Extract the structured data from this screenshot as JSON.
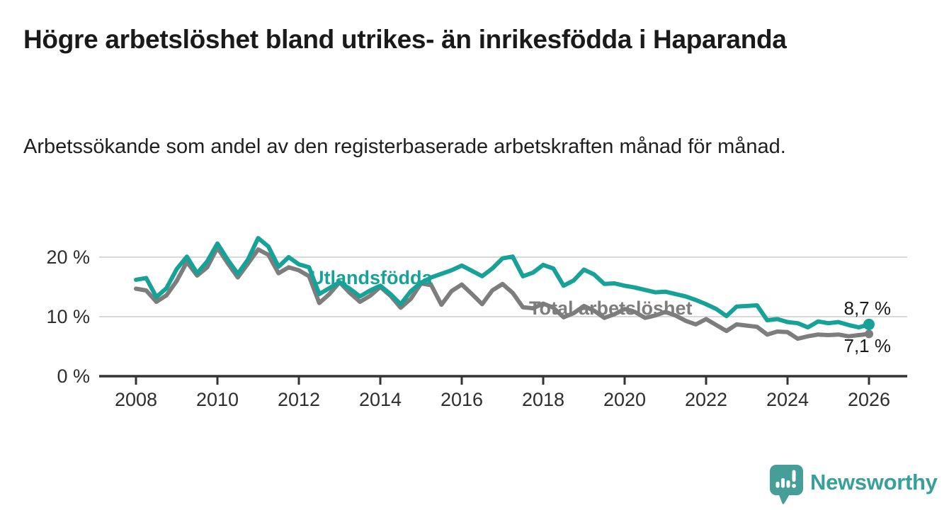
{
  "chart_data": {
    "type": "line",
    "title": "Högre arbetslöshet bland utrikes- än inrikesfödda i Haparanda",
    "subtitle": "Arbetssökande som andel av den registerbaserade arbetskraften månad för månad.",
    "unit": "%",
    "x_start": 2008,
    "x_step": 0.25,
    "x_tick_years": [
      2008,
      2010,
      2012,
      2014,
      2016,
      2018,
      2020,
      2022,
      2024,
      2026
    ],
    "y_ticks": [
      {
        "value": 0,
        "label": "0 %"
      },
      {
        "value": 10,
        "label": "10 %"
      },
      {
        "value": 20,
        "label": "20 %"
      }
    ],
    "y_gridlines": [
      10,
      20
    ],
    "ylim": [
      0,
      24
    ],
    "xlim": [
      2007.1,
      2026.9
    ],
    "grid": true,
    "legend_position": "inline-labels",
    "colors": {
      "gridline": "#d9d9d9",
      "axis": "#333333",
      "value_label": "#1a1a1a"
    },
    "series": [
      {
        "name": "Total arbetslöshet",
        "color": "#7d7d7d",
        "end_label": "7,1 %",
        "end_value": 7.1,
        "end_dot_radius": 6,
        "label_pos": {
          "x": 747,
          "y": 444
        },
        "end_label_pos": {
          "x": 1258,
          "y": 497
        },
        "values": [
          14.7,
          14.4,
          12.5,
          13.6,
          16.0,
          19.2,
          16.9,
          18.3,
          21.6,
          19.0,
          16.6,
          18.9,
          21.3,
          20.4,
          17.3,
          18.3,
          17.8,
          16.8,
          12.3,
          13.8,
          15.8,
          14.0,
          12.5,
          13.5,
          15.0,
          13.5,
          11.5,
          13.0,
          15.6,
          15.3,
          12.0,
          14.3,
          15.4,
          13.8,
          12.1,
          14.4,
          15.5,
          14.0,
          11.6,
          11.4,
          12.2,
          11.5,
          9.9,
          10.6,
          11.8,
          11.0,
          9.8,
          10.4,
          11.3,
          10.8,
          9.8,
          10.2,
          10.8,
          10.2,
          9.3,
          8.7,
          9.6,
          8.6,
          7.6,
          8.7,
          8.5,
          8.3,
          7.0,
          7.5,
          7.4,
          6.3,
          6.7,
          7.0,
          6.9,
          7.0,
          6.7,
          6.9,
          7.1
        ]
      },
      {
        "name": "Utlandsfödda",
        "color": "#17a297",
        "end_label": "8,7 %",
        "end_value": 8.7,
        "end_dot_radius": 8,
        "label_pos": {
          "x": 438,
          "y": 401
        },
        "end_label_pos": {
          "x": 1258,
          "y": 444
        },
        "values": [
          16.2,
          16.5,
          13.3,
          14.8,
          18.0,
          20.1,
          17.3,
          19.3,
          22.3,
          19.6,
          17.2,
          19.6,
          23.2,
          21.8,
          18.4,
          20.0,
          18.8,
          18.3,
          13.8,
          14.8,
          15.8,
          14.7,
          13.4,
          14.4,
          15.2,
          13.8,
          12.1,
          14.3,
          15.7,
          16.6,
          17.2,
          17.8,
          18.6,
          17.7,
          16.8,
          18.1,
          19.8,
          20.1,
          16.8,
          17.4,
          18.7,
          18.1,
          15.2,
          16.1,
          17.9,
          17.1,
          15.5,
          15.6,
          15.2,
          14.9,
          14.5,
          14.1,
          14.2,
          13.8,
          13.4,
          12.8,
          12.1,
          11.3,
          10.1,
          11.7,
          11.8,
          11.9,
          9.4,
          9.6,
          9.1,
          8.9,
          8.2,
          9.2,
          8.9,
          9.1,
          8.6,
          8.2,
          8.7
        ]
      }
    ]
  },
  "branding": {
    "logo_text": "Newsworthy",
    "logo_color": "#3a9e97"
  }
}
